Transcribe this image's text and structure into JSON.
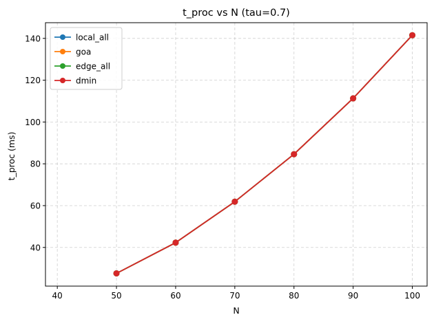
{
  "chart_data": {
    "type": "line",
    "title": "t_proc vs N (tau=0.7)",
    "xlabel": "N",
    "ylabel": "t_proc (ms)",
    "x": [
      50,
      60,
      70,
      80,
      90,
      100
    ],
    "xlim": [
      38,
      102.5
    ],
    "ylim": [
      21.5,
      147.5
    ],
    "xticks": [
      40,
      50,
      60,
      70,
      80,
      90,
      100
    ],
    "yticks": [
      40,
      60,
      80,
      100,
      120,
      140
    ],
    "grid": true,
    "legend_position": "top-left",
    "series": [
      {
        "name": "local_all",
        "color": "#1f77b4",
        "values": [
          27.6,
          42.3,
          61.9,
          84.6,
          111.3,
          141.5
        ]
      },
      {
        "name": "goa",
        "color": "#ff7f0e",
        "values": [
          27.6,
          42.3,
          61.9,
          84.6,
          111.3,
          141.5
        ]
      },
      {
        "name": "edge_all",
        "color": "#2ca02c",
        "values": [
          27.6,
          42.3,
          61.9,
          84.6,
          111.3,
          141.5
        ]
      },
      {
        "name": "dmin",
        "color": "#d62728",
        "values": [
          27.6,
          42.3,
          61.9,
          84.6,
          111.3,
          141.5
        ]
      }
    ]
  }
}
